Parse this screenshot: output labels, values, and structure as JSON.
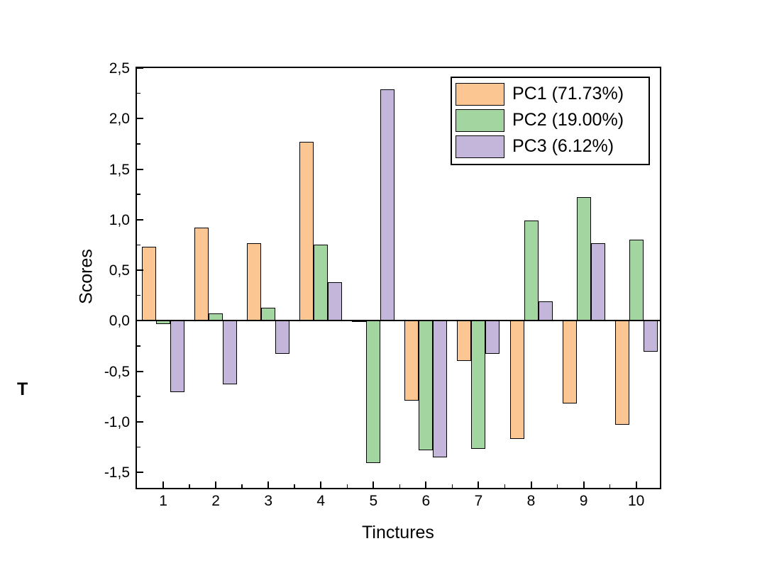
{
  "figure": {
    "annotation": "T"
  },
  "chart_data": {
    "type": "bar",
    "title": "",
    "xlabel": "Tinctures",
    "ylabel": "Scores",
    "decimal_separator": ",",
    "grid": false,
    "legend_position": "top-right",
    "categories": [
      "1",
      "2",
      "3",
      "4",
      "5",
      "6",
      "7",
      "8",
      "9",
      "10"
    ],
    "series": [
      {
        "name": "PC1 (71.73%)",
        "color": "#FBC691",
        "values": [
          0.73,
          0.92,
          0.77,
          1.77,
          0.01,
          -0.79,
          -0.4,
          -1.17,
          -0.82,
          -1.03
        ]
      },
      {
        "name": "PC2 (19.00%)",
        "color": "#A2D5A0",
        "values": [
          -0.03,
          0.07,
          0.13,
          0.75,
          -1.41,
          -1.28,
          -1.27,
          0.99,
          1.22,
          0.8
        ]
      },
      {
        "name": "PC3 (6.12%)",
        "color": "#C4B6DB",
        "values": [
          -0.71,
          -0.63,
          -0.33,
          0.38,
          2.29,
          -1.35,
          -0.33,
          0.19,
          0.77,
          -0.31
        ]
      }
    ],
    "y_axis": {
      "min": -1.654,
      "max": 2.5,
      "major_tick_values": [
        2.5,
        2.0,
        1.5,
        1.0,
        0.5,
        0.0,
        -0.5,
        -1.0,
        -1.5
      ],
      "major_tick_labels": [
        "2,5",
        "2,0",
        "1,5",
        "1,0",
        "0,5",
        "0,0",
        "-0,5",
        "-1,0",
        "-1,5"
      ],
      "minor_tick_values": [
        2.25,
        1.75,
        1.25,
        0.75,
        0.25,
        -0.25,
        -0.75,
        -1.25
      ]
    },
    "x_axis": {
      "min": 0.5,
      "max": 10.45,
      "major_tick_positions": [
        1,
        2,
        3,
        4,
        5,
        6,
        7,
        8,
        9,
        10
      ],
      "minor_tick_positions": [
        1.5,
        2.5,
        3.5,
        4.5,
        5.5,
        6.5,
        7.5,
        8.5,
        9.5
      ]
    },
    "axis_color": "#000000",
    "bar_outline_color": "#000000"
  }
}
